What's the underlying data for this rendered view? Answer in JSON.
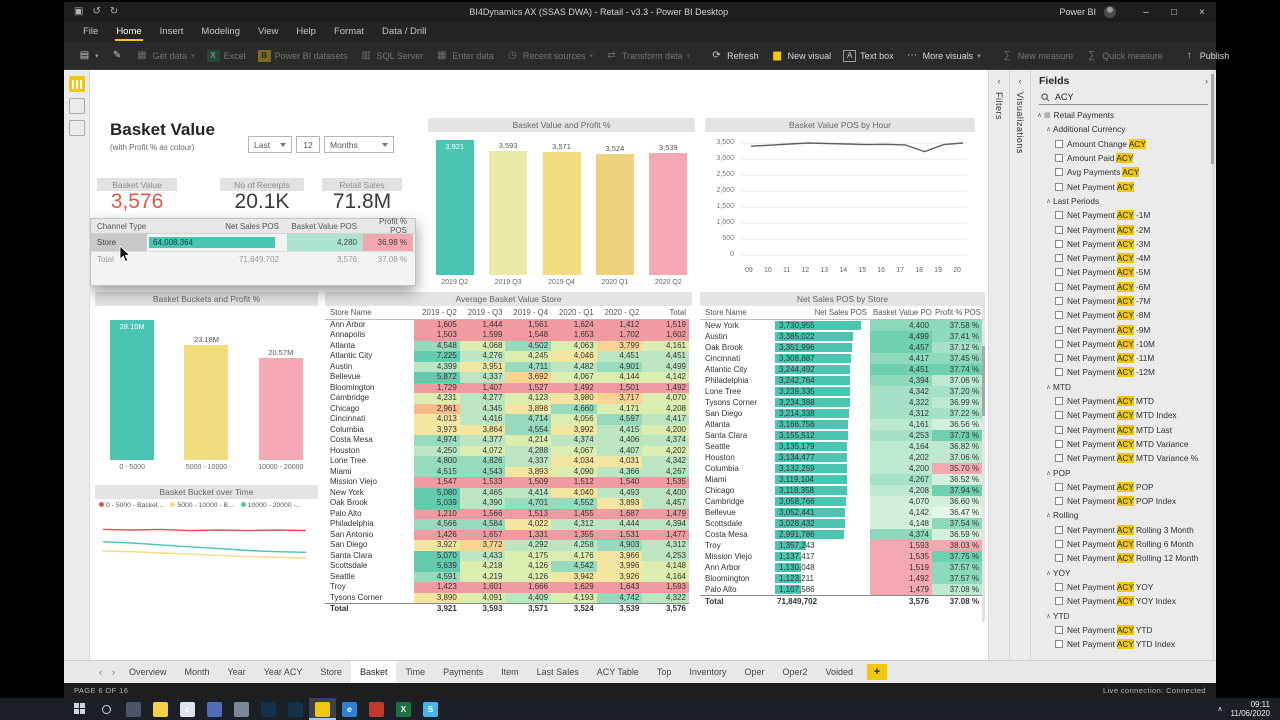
{
  "window": {
    "title": "BI4Dynamics AX (SSAS DWA) - Retail - v3.3 - Power BI Desktop",
    "brand": "Power BI",
    "minimize": "–",
    "maximize": "□",
    "close": "×"
  },
  "menu": {
    "items": [
      "File",
      "Home",
      "Insert",
      "Modeling",
      "View",
      "Help",
      "Format",
      "Data / Drill"
    ],
    "active": "Home"
  },
  "ribbon": {
    "buttons": [
      {
        "icon": "paste",
        "caret": true
      },
      {
        "icon": "brush"
      },
      {
        "label": "Get data",
        "icon": "database",
        "caret": true,
        "enabled": false
      },
      {
        "label": "Excel",
        "icon": "excel",
        "enabled": false
      },
      {
        "label": "Power BI datasets",
        "icon": "pbi",
        "enabled": false
      },
      {
        "label": "SQL Server",
        "icon": "server",
        "enab​led": false,
        "enabled": false
      },
      {
        "label": "Enter data",
        "icon": "table",
        "enabled": false
      },
      {
        "label": "Recent sources",
        "icon": "clock",
        "caret": true,
        "enabled": false
      },
      {
        "label": "Transform data",
        "icon": "transform",
        "caret": true,
        "enabled": false,
        "sep": true
      },
      {
        "label": "Refresh",
        "icon": "refresh"
      },
      {
        "label": "New visual",
        "icon": "chart"
      },
      {
        "label": "Text box",
        "icon": "textbox"
      },
      {
        "label": "More visuals",
        "icon": "more",
        "caret": true,
        "sep": true
      },
      {
        "label": "New measure",
        "icon": "measure",
        "enabled": false
      },
      {
        "label": "Quick measure",
        "icon": "measure",
        "enabled": false,
        "sep": true
      },
      {
        "label": "Publish",
        "icon": "publish"
      }
    ]
  },
  "report": {
    "title": "Basket Value",
    "subtitle": "(with Profit % as colour)",
    "slicer": {
      "label": "Last",
      "value": "12",
      "unit": "Months"
    },
    "cards": [
      {
        "title": "Basket Value",
        "value": "3,576",
        "accent": "#e2574c"
      },
      {
        "title": "No of Receipts",
        "value": "20.1K",
        "accent": "#3b3b3b"
      },
      {
        "title": "Retail Sales",
        "value": "71.8M",
        "accent": "#3b3b3b"
      }
    ],
    "tooltip": {
      "headers": [
        "Channel Type",
        "Net Sales POS",
        "Basket Value POS",
        "Profit % POS"
      ],
      "store_row": {
        "name": "Store",
        "net": "64,008,364",
        "basket": "4,280",
        "profit": "36.98 %"
      },
      "total_row": {
        "name": "Total",
        "net": "71,849,702",
        "basket": "3,576",
        "profit": "37.08 %"
      }
    },
    "charts": {
      "value_profit": {
        "type": "bar",
        "title": "Basket Value and Profit %",
        "categories": [
          "2019 Q2",
          "2019 Q3",
          "2019 Q4",
          "2020 Q1",
          "2020 Q2"
        ],
        "values": [
          3921,
          3593,
          3571,
          3524,
          3539
        ],
        "labels": [
          "3,921",
          "3,593",
          "3,571",
          "3,524",
          "3,539"
        ],
        "colors": [
          "#49c5b1",
          "#e9eaa8",
          "#f2dc80",
          "#eed27f",
          "#f4a9b4"
        ]
      },
      "by_hour": {
        "type": "line",
        "title": "Basket Value POS by Hour",
        "x": [
          "09",
          "10",
          "11",
          "12",
          "13",
          "14",
          "15",
          "16",
          "17",
          "18",
          "19",
          "20"
        ],
        "values": [
          3400,
          3430,
          3470,
          3500,
          3480,
          3470,
          3450,
          3460,
          3440,
          3230,
          3450,
          3500
        ],
        "ymax": 3500,
        "yticks": [
          3500,
          3000,
          2500,
          2000,
          1500,
          1000,
          500,
          0
        ],
        "ytick_labels": [
          "3,500",
          "3,000",
          "2,500",
          "2,000",
          "1,500",
          "1,000",
          "500",
          "0"
        ]
      },
      "buckets": {
        "type": "bar",
        "title": "Basket Buckets and Profit %",
        "categories": [
          "0 - 5000",
          "5000 - 10000",
          "10000 - 20000"
        ],
        "values": [
          28.1,
          23.18,
          20.57
        ],
        "labels": [
          "28.10M",
          "23.18M",
          "20.57M"
        ],
        "colors": [
          "#49c5b1",
          "#f2dc80",
          "#f4a9b4"
        ]
      },
      "bucket_time": {
        "type": "line",
        "title": "Basket Bucket over Time",
        "legend": [
          {
            "label": "0 - 5000 - Basket...",
            "color": "#e05252"
          },
          {
            "label": "5000 - 10000 - B...",
            "color": "#f2dc80"
          },
          {
            "label": "10000 - 20000 -...",
            "color": "#49c5b1"
          }
        ],
        "series": [
          {
            "name": "0 - 5000",
            "color": "#e05252",
            "trend": [
              0.8,
              0.79,
              0.8,
              0.78,
              0.79,
              0.78,
              0.79,
              0.78
            ]
          },
          {
            "name": "5000 - 10000",
            "color": "#f2dc80",
            "trend": [
              0.45,
              0.44,
              0.42,
              0.4,
              0.38,
              0.36,
              0.35,
              0.34
            ]
          },
          {
            "name": "10000 - 20000",
            "color": "#49c5b1",
            "trend": [
              0.6,
              0.58,
              0.55,
              0.52,
              0.49,
              0.46,
              0.44,
              0.43
            ]
          }
        ]
      }
    },
    "tables": {
      "avg": {
        "title": "Average Basket Value Store",
        "headers": [
          "Store Name",
          "2019 - Q2",
          "2019 - Q3",
          "2019 - Q4",
          "2020 - Q1",
          "2020 - Q2",
          "Total"
        ],
        "rows": [
          [
            "Ann Arbor",
            "1,605",
            "1,444",
            "1,561",
            "1,624",
            "1,412",
            "1,519"
          ],
          [
            "Annapolis",
            "1,503",
            "1,599",
            "1,548",
            "1,653",
            "1,702",
            "1,602"
          ],
          [
            "Atlanta",
            "4,548",
            "4,068",
            "4,502",
            "4,063",
            "3,799",
            "4,161"
          ],
          [
            "Atlantic City",
            "7,225",
            "4,276",
            "4,245",
            "4,046",
            "4,451",
            "4,451"
          ],
          [
            "Austin",
            "4,399",
            "3,951",
            "4,711",
            "4,482",
            "4,901",
            "4,499"
          ],
          [
            "Bellevue",
            "5,872",
            "4,337",
            "3,692",
            "4,067",
            "4,144",
            "4,142"
          ],
          [
            "Bloomington",
            "1,729",
            "1,407",
            "1,527",
            "1,492",
            "1,501",
            "1,492"
          ],
          [
            "Cambridge",
            "4,231",
            "4,277",
            "4,123",
            "3,980",
            "3,717",
            "4,070"
          ],
          [
            "Chicago",
            "2,961",
            "4,345",
            "3,898",
            "4,660",
            "4,171",
            "4,208"
          ],
          [
            "Cincinnati",
            "4,013",
            "4,416",
            "4,714",
            "4,056",
            "4,597",
            "4,417"
          ],
          [
            "Columbia",
            "3,973",
            "3,864",
            "4,554",
            "3,992",
            "4,415",
            "4,200"
          ],
          [
            "Costa Mesa",
            "4,974",
            "4,377",
            "4,214",
            "4,374",
            "4,406",
            "4,374"
          ],
          [
            "Houston",
            "4,250",
            "4,072",
            "4,288",
            "4,067",
            "4,407",
            "4,202"
          ],
          [
            "Lone Tree",
            "4,800",
            "4,826",
            "4,337",
            "4,034",
            "4,031",
            "4,342"
          ],
          [
            "Miami",
            "4,515",
            "4,543",
            "3,893",
            "4,090",
            "4,366",
            "4,267"
          ],
          [
            "Mission Viejo",
            "1,547",
            "1,533",
            "1,509",
            "1,512",
            "1,540",
            "1,535"
          ],
          [
            "New York",
            "5,080",
            "4,465",
            "4,414",
            "4,040",
            "4,493",
            "4,400"
          ],
          [
            "Oak Brook",
            "5,039",
            "4,390",
            "4,701",
            "4,552",
            "3,893",
            "4,457"
          ],
          [
            "Palo Alto",
            "1,210",
            "1,566",
            "1,513",
            "1,455",
            "1,687",
            "1,479"
          ],
          [
            "Philadelphia",
            "4,566",
            "4,584",
            "4,022",
            "4,312",
            "4,444",
            "4,394"
          ],
          [
            "San Antonio",
            "1,426",
            "1,657",
            "1,331",
            "1,355",
            "1,531",
            "1,477"
          ],
          [
            "San Diego",
            "3,927",
            "3,772",
            "4,292",
            "4,258",
            "4,903",
            "4,312"
          ],
          [
            "Santa Clara",
            "5,070",
            "4,433",
            "4,175",
            "4,176",
            "3,966",
            "4,253"
          ],
          [
            "Scottsdale",
            "5,639",
            "4,218",
            "4,126",
            "4,542",
            "3,996",
            "4,148"
          ],
          [
            "Seattle",
            "4,591",
            "4,219",
            "4,126",
            "3,942",
            "3,926",
            "4,164"
          ],
          [
            "Troy",
            "1,423",
            "1,601",
            "1,666",
            "1,629",
            "1,643",
            "1,593"
          ],
          [
            "Tysons Corner",
            "3,890",
            "4,091",
            "4,409",
            "4,193",
            "4,742",
            "4,322"
          ]
        ],
        "total": [
          "Total",
          "3,921",
          "3,593",
          "3,571",
          "3,524",
          "3,539",
          "3,576"
        ]
      },
      "net": {
        "title": "Net Sales POS by Store",
        "headers": [
          "Store Name",
          "Net Sales POS",
          "Basket Value POS",
          "Profit % POS"
        ],
        "max_net": 3730955,
        "rows": [
          [
            "New York",
            "3,730,955",
            "4,400",
            "37.58 %"
          ],
          [
            "Austin",
            "3,385,022",
            "4,499",
            "37.41 %"
          ],
          [
            "Oak Brook",
            "3,351,996",
            "4,457",
            "37.12 %"
          ],
          [
            "Cincinnati",
            "3,308,887",
            "4,417",
            "37.45 %"
          ],
          [
            "Atlantic City",
            "3,244,492",
            "4,451",
            "37.74 %"
          ],
          [
            "Philadelphia",
            "3,242,764",
            "4,394",
            "37.06 %"
          ],
          [
            "Lone Tree",
            "3,239,335",
            "4,342",
            "37.20 %"
          ],
          [
            "Tysons Corner",
            "3,234,388",
            "4,322",
            "36.99 %"
          ],
          [
            "San Diego",
            "3,214,338",
            "4,312",
            "37.22 %"
          ],
          [
            "Atlanta",
            "3,166,756",
            "4,161",
            "36.56 %"
          ],
          [
            "Santa Clara",
            "3,155,512",
            "4,253",
            "37.73 %"
          ],
          [
            "Seattle",
            "3,135,179",
            "4,164",
            "36.82 %"
          ],
          [
            "Houston",
            "3,134,477",
            "4,202",
            "37.06 %"
          ],
          [
            "Columbia",
            "3,132,259",
            "4,200",
            "35.70 %"
          ],
          [
            "Miami",
            "3,119,104",
            "4,267",
            "36.52 %"
          ],
          [
            "Chicago",
            "3,118,358",
            "4,208",
            "37.94 %"
          ],
          [
            "Cambridge",
            "3,058,766",
            "4,070",
            "36.60 %"
          ],
          [
            "Bellevue",
            "3,052,441",
            "4,142",
            "36.47 %"
          ],
          [
            "Scottsdale",
            "3,028,432",
            "4,148",
            "37.54 %"
          ],
          [
            "Costa Mesa",
            "2,991,786",
            "4,374",
            "36.59 %"
          ],
          [
            "Troy",
            "1,357,243",
            "1,593",
            "38.03 %"
          ],
          [
            "Mission Viejo",
            "1,137,417",
            "1,535",
            "37.75 %"
          ],
          [
            "Ann Arbor",
            "1,130,048",
            "1,519",
            "37.57 %"
          ],
          [
            "Bloomington",
            "1,123,211",
            "1,492",
            "37.57 %"
          ],
          [
            "Palo Alto",
            "1,107,586",
            "1,479",
            "37.08 %"
          ]
        ],
        "total": [
          "Total",
          "71,849,702",
          "3,576",
          "37.08 %"
        ],
        "pink_profit": [
          "Columbia",
          "Troy"
        ]
      }
    }
  },
  "panels": {
    "filters": "Filters",
    "visualizations": "Visualizations",
    "fields": {
      "title": "Fields",
      "search": "ACY",
      "items": [
        {
          "label": "Retail Payments",
          "kind": "t"
        },
        {
          "label": "Additional Currency",
          "kind": "g"
        },
        {
          "label": "Amount Change ACY",
          "kind": "f"
        },
        {
          "label": "Amount Paid ACY",
          "kind": "f"
        },
        {
          "label": "Avg Payments ACY",
          "kind": "f"
        },
        {
          "label": "Net Payment ACY",
          "kind": "f"
        },
        {
          "label": "Last Periods",
          "kind": "g"
        },
        {
          "label": "Net Payment ACY -1M",
          "kind": "f"
        },
        {
          "label": "Net Payment ACY -2M",
          "kind": "f"
        },
        {
          "label": "Net Payment ACY -3M",
          "kind": "f"
        },
        {
          "label": "Net Payment ACY -4M",
          "kind": "f"
        },
        {
          "label": "Net Payment ACY -5M",
          "kind": "f"
        },
        {
          "label": "Net Payment ACY -6M",
          "kind": "f"
        },
        {
          "label": "Net Payment ACY -7M",
          "kind": "f"
        },
        {
          "label": "Net Payment ACY -8M",
          "kind": "f"
        },
        {
          "label": "Net Payment ACY -9M",
          "kind": "f"
        },
        {
          "label": "Net Payment ACY -10M",
          "kind": "f"
        },
        {
          "label": "Net Payment ACY -11M",
          "kind": "f"
        },
        {
          "label": "Net Payment ACY -12M",
          "kind": "f"
        },
        {
          "label": "MTD",
          "kind": "g"
        },
        {
          "label": "Net Payment ACY MTD",
          "kind": "f"
        },
        {
          "label": "Net Payment ACY MTD Index",
          "kind": "f"
        },
        {
          "label": "Net Payment ACY MTD Last",
          "kind": "f"
        },
        {
          "label": "Net Payment ACY MTD Variance",
          "kind": "f"
        },
        {
          "label": "Net Payment ACY MTD Variance %",
          "kind": "f"
        },
        {
          "label": "POP",
          "kind": "g"
        },
        {
          "label": "Net Payment ACY POP",
          "kind": "f"
        },
        {
          "label": "Net Payment ACY POP Index",
          "kind": "f"
        },
        {
          "label": "Rolling",
          "kind": "g"
        },
        {
          "label": "Net Payment ACY Rolling 3 Month",
          "kind": "f"
        },
        {
          "label": "Net Payment ACY Rolling 6 Month",
          "kind": "f"
        },
        {
          "label": "Net Payment ACY Rolling 12 Month",
          "kind": "f"
        },
        {
          "label": "YOY",
          "kind": "g"
        },
        {
          "label": "Net Payment ACY YOY",
          "kind": "f"
        },
        {
          "label": "Net Payment ACY YOY Index",
          "kind": "f"
        },
        {
          "label": "YTD",
          "kind": "g"
        },
        {
          "label": "Net Payment ACY YTD",
          "kind": "f"
        },
        {
          "label": "Net Payment ACY YTD Index",
          "kind": "f"
        }
      ]
    }
  },
  "page_tabs": {
    "prev": "‹",
    "next": "›",
    "tabs": [
      "Overview",
      "Month",
      "Year",
      "Year ACY",
      "Store",
      "Basket",
      "Time",
      "Payments",
      "Item",
      "Last Sales",
      "ACY Table",
      "Top",
      "Inventory",
      "Oper",
      "Oper2",
      "Voided"
    ],
    "active": "Basket",
    "add": "+"
  },
  "status": {
    "left": "PAGE 6 OF 16",
    "right": "Live connection: Connected"
  },
  "taskbar": {
    "time": "09:11",
    "date": "11/06/2020",
    "tray_chevron": "∧",
    "icons": [
      {
        "name": "start"
      },
      {
        "name": "search"
      },
      {
        "name": "snipping-tool",
        "color": "#4a5568"
      },
      {
        "name": "file-explorer",
        "color": "#f8ce46"
      },
      {
        "name": "chrome",
        "color": "#dde3e8",
        "letter": "c"
      },
      {
        "name": "app-blue",
        "color": "#4f6db8"
      },
      {
        "name": "app-gray",
        "color": "#7d8795"
      },
      {
        "name": "power-bi-1",
        "color": "#16324a"
      },
      {
        "name": "power-bi-2",
        "color": "#16324a"
      },
      {
        "name": "power-bi-active",
        "color": "#f2c80f",
        "active": true
      },
      {
        "name": "edge",
        "color": "#2f7fd4",
        "letter": "e"
      },
      {
        "name": "acrobat",
        "color": "#c0392b"
      },
      {
        "name": "excel",
        "color": "#1d6f42",
        "letter": "X"
      },
      {
        "name": "skype",
        "color": "#45b6e8",
        "letter": "S"
      }
    ]
  }
}
